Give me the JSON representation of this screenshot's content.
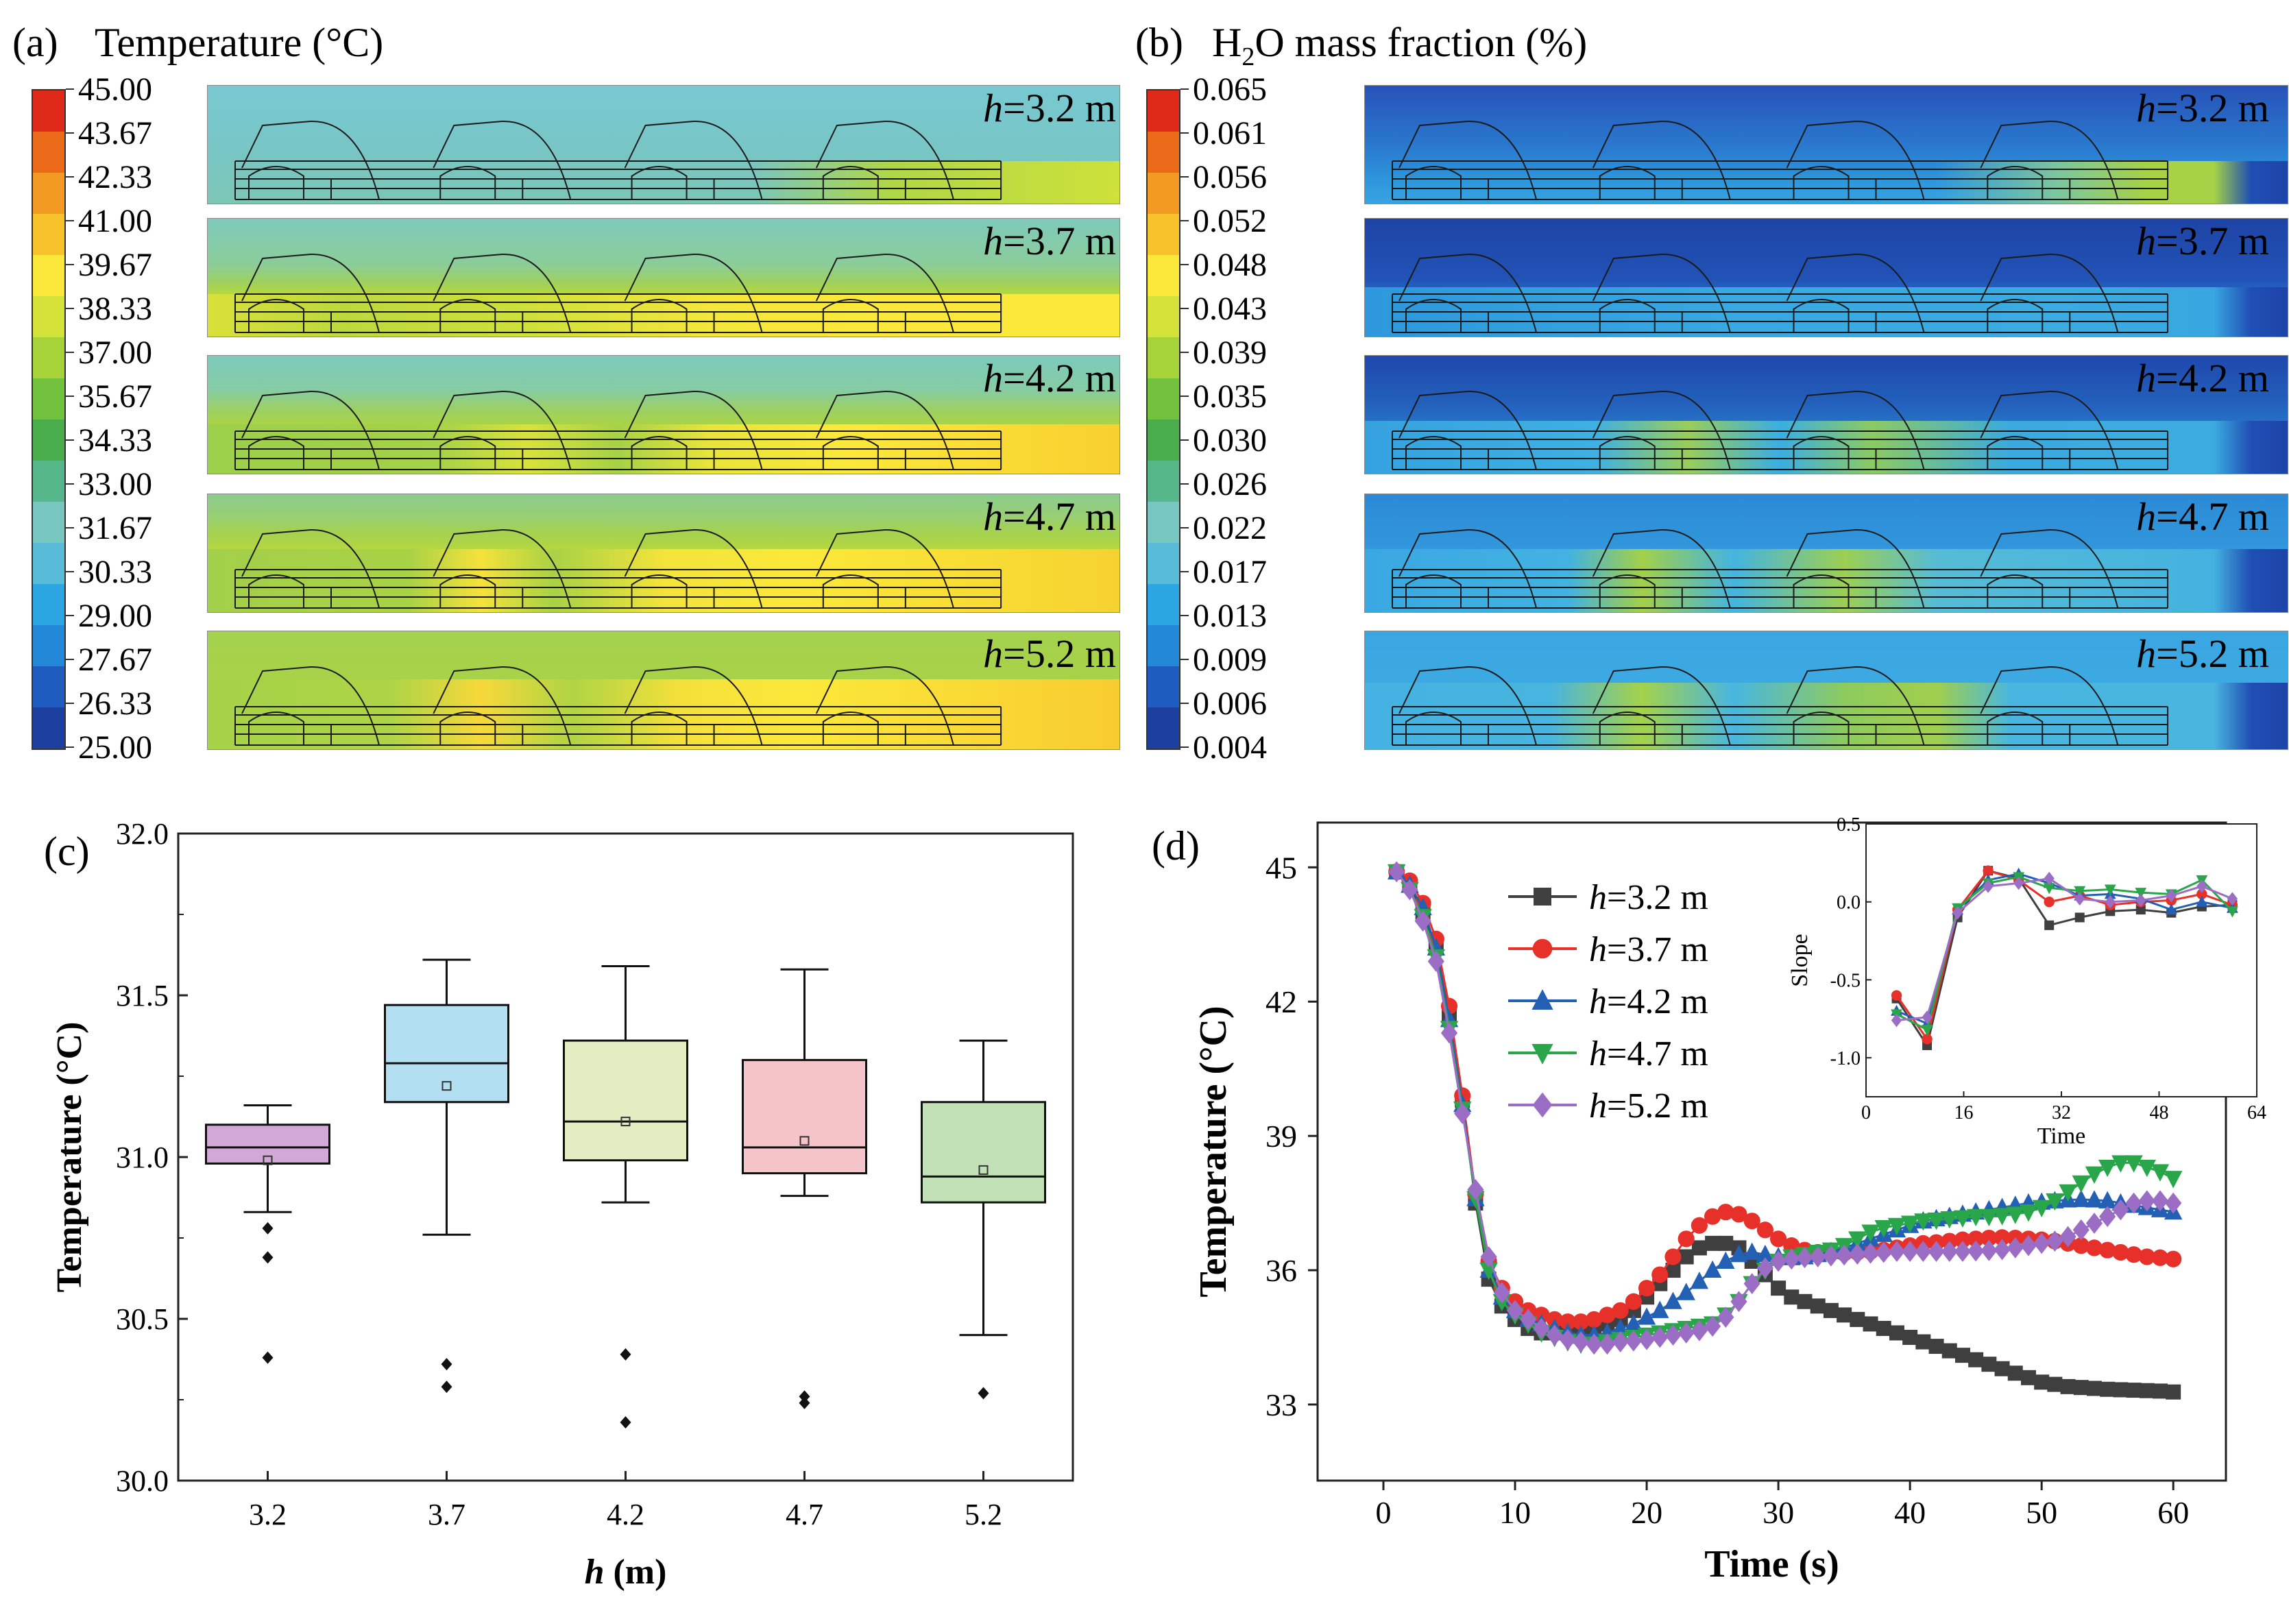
{
  "panel_a": {
    "label": "(a)",
    "title": "Temperature (°C)",
    "colorbar_ticks": [
      "45.00",
      "43.67",
      "42.33",
      "41.00",
      "39.67",
      "38.33",
      "37.00",
      "35.67",
      "34.33",
      "33.00",
      "31.67",
      "30.33",
      "29.00",
      "27.67",
      "26.33",
      "25.00"
    ],
    "h_prefix": "h",
    "h_labels": [
      "=3.2 m",
      "=3.7 m",
      "=4.2 m",
      "=4.7 m",
      "=5.2 m"
    ]
  },
  "panel_b": {
    "label": "(b)",
    "title_pre": "H",
    "title_sub": "2",
    "title_post": "O mass fraction (%)",
    "colorbar_ticks": [
      "0.065",
      "0.061",
      "0.056",
      "0.052",
      "0.048",
      "0.043",
      "0.039",
      "0.035",
      "0.030",
      "0.026",
      "0.022",
      "0.017",
      "0.013",
      "0.009",
      "0.006",
      "0.004"
    ],
    "h_prefix": "h",
    "h_labels": [
      "=3.2 m",
      "=3.7 m",
      "=4.2 m",
      "=4.7 m",
      "=5.2 m"
    ]
  },
  "colors": {
    "scale": [
      "#1d3fa0",
      "#1f5cc0",
      "#2388d8",
      "#2ba6e2",
      "#58bcd8",
      "#78c6c0",
      "#56b88a",
      "#48ad4a",
      "#72c23e",
      "#a6d23a",
      "#d5e23a",
      "#fbe83a",
      "#f8c22c",
      "#f29a22",
      "#ea6a1a",
      "#df2a1a"
    ],
    "h32": "#3f3f3f",
    "h37": "#e8302a",
    "h42": "#2360b4",
    "h47": "#2aa64a",
    "h52": "#9b6dc4"
  },
  "chart_data": [
    {
      "type": "box",
      "panel": "(c)",
      "xlabel_var": "h",
      "xlabel_unit": " (m)",
      "ylabel": "Temperature (°C)",
      "ylim": [
        30.0,
        32.0
      ],
      "yticks": [
        "30.0",
        "30.5",
        "31.0",
        "31.5",
        "32.0"
      ],
      "categories": [
        "3.2",
        "3.7",
        "4.2",
        "4.7",
        "5.2"
      ],
      "boxes": [
        {
          "q1": 30.98,
          "median": 31.03,
          "q3": 31.1,
          "mean": 30.99,
          "whisker_low": 30.83,
          "whisker_high": 31.16,
          "outliers": [
            30.78,
            30.69,
            30.38
          ],
          "fill": "#d2a9d6"
        },
        {
          "q1": 31.17,
          "median": 31.29,
          "q3": 31.47,
          "mean": 31.22,
          "whisker_low": 30.76,
          "whisker_high": 31.61,
          "outliers": [
            30.36,
            30.29
          ],
          "fill": "#b3dff3"
        },
        {
          "q1": 30.99,
          "median": 31.11,
          "q3": 31.36,
          "mean": 31.11,
          "whisker_low": 30.86,
          "whisker_high": 31.59,
          "outliers": [
            30.39,
            30.18
          ],
          "fill": "#e2edc2"
        },
        {
          "q1": 30.95,
          "median": 31.03,
          "q3": 31.3,
          "mean": 31.05,
          "whisker_low": 30.88,
          "whisker_high": 31.58,
          "outliers": [
            30.26,
            30.24
          ],
          "fill": "#f4c4c8"
        },
        {
          "q1": 30.86,
          "median": 30.94,
          "q3": 31.17,
          "mean": 30.96,
          "whisker_low": 30.45,
          "whisker_high": 31.36,
          "outliers": [
            30.27
          ],
          "fill": "#c2e1b7"
        }
      ]
    },
    {
      "type": "line",
      "panel": "(d)",
      "xlabel": "Time (s)",
      "ylabel": "Temperature (°C)",
      "xlim": [
        -5,
        64
      ],
      "ylim": [
        31.3,
        46.0
      ],
      "xticks": [
        "0",
        "10",
        "20",
        "30",
        "40",
        "50",
        "60"
      ],
      "yticks": [
        "33",
        "36",
        "39",
        "42",
        "45"
      ],
      "x": [
        1,
        2,
        3,
        4,
        5,
        6,
        7,
        8,
        9,
        10,
        11,
        12,
        13,
        14,
        15,
        16,
        17,
        18,
        19,
        20,
        21,
        22,
        23,
        24,
        25,
        26,
        27,
        28,
        29,
        30,
        31,
        32,
        33,
        34,
        35,
        36,
        37,
        38,
        39,
        40,
        41,
        42,
        43,
        44,
        45,
        46,
        47,
        48,
        49,
        50,
        51,
        52,
        53,
        54,
        55,
        56,
        57,
        58,
        59,
        60
      ],
      "series": [
        {
          "name": "=3.2 m",
          "marker": "square",
          "values": [
            44.9,
            44.6,
            44.0,
            43.2,
            41.7,
            39.8,
            37.5,
            35.8,
            35.2,
            34.9,
            34.7,
            34.6,
            34.6,
            34.6,
            34.6,
            34.7,
            34.8,
            34.9,
            35.1,
            35.4,
            35.7,
            36.0,
            36.3,
            36.5,
            36.6,
            36.6,
            36.5,
            36.2,
            35.9,
            35.6,
            35.4,
            35.3,
            35.2,
            35.1,
            35.0,
            34.9,
            34.8,
            34.7,
            34.6,
            34.5,
            34.4,
            34.3,
            34.2,
            34.1,
            34.0,
            33.9,
            33.8,
            33.7,
            33.6,
            33.5,
            33.45,
            33.4,
            33.38,
            33.36,
            33.34,
            33.33,
            33.32,
            33.31,
            33.3,
            33.28
          ]
        },
        {
          "name": "=3.7 m",
          "marker": "circle",
          "values": [
            44.9,
            44.7,
            44.2,
            43.4,
            41.9,
            39.9,
            37.7,
            36.2,
            35.6,
            35.3,
            35.1,
            35.0,
            34.9,
            34.85,
            34.85,
            34.9,
            35.0,
            35.1,
            35.3,
            35.6,
            35.9,
            36.3,
            36.7,
            37.0,
            37.2,
            37.3,
            37.25,
            37.1,
            36.9,
            36.7,
            36.55,
            36.45,
            36.4,
            36.38,
            36.38,
            36.4,
            36.42,
            36.45,
            36.5,
            36.55,
            36.6,
            36.62,
            36.65,
            36.68,
            36.7,
            36.72,
            36.73,
            36.72,
            36.7,
            36.68,
            36.65,
            36.6,
            36.55,
            36.5,
            36.45,
            36.4,
            36.35,
            36.3,
            36.28,
            36.25
          ]
        },
        {
          "name": "=4.2 m",
          "marker": "triangle-up",
          "values": [
            44.9,
            44.6,
            44.1,
            43.2,
            41.6,
            39.7,
            37.6,
            36.0,
            35.4,
            35.1,
            34.9,
            34.8,
            34.7,
            34.6,
            34.55,
            34.55,
            34.6,
            34.7,
            34.8,
            34.95,
            35.1,
            35.3,
            35.5,
            35.75,
            36.0,
            36.2,
            36.35,
            36.4,
            36.35,
            36.3,
            36.28,
            36.3,
            36.35,
            36.42,
            36.5,
            36.6,
            36.7,
            36.8,
            36.9,
            37.0,
            37.1,
            37.15,
            37.2,
            37.25,
            37.3,
            37.35,
            37.4,
            37.45,
            37.5,
            37.52,
            37.55,
            37.57,
            37.58,
            37.57,
            37.55,
            37.5,
            37.45,
            37.4,
            37.35,
            37.3
          ]
        },
        {
          "name": "=4.7 m",
          "marker": "triangle-down",
          "values": [
            44.9,
            44.5,
            43.9,
            43.0,
            41.4,
            39.6,
            37.6,
            36.0,
            35.3,
            35.0,
            34.8,
            34.6,
            34.5,
            34.4,
            34.35,
            34.35,
            34.4,
            34.45,
            34.5,
            34.55,
            34.6,
            34.65,
            34.7,
            34.75,
            34.8,
            35.0,
            35.3,
            35.7,
            36.0,
            36.2,
            36.3,
            36.35,
            36.4,
            36.45,
            36.55,
            36.7,
            36.85,
            36.95,
            37.0,
            37.05,
            37.1,
            37.12,
            37.15,
            37.17,
            37.2,
            37.2,
            37.22,
            37.25,
            37.3,
            37.4,
            37.55,
            37.75,
            37.95,
            38.15,
            38.3,
            38.4,
            38.4,
            38.3,
            38.2,
            38.05
          ]
        },
        {
          "name": "=5.2 m",
          "marker": "diamond",
          "values": [
            44.9,
            44.5,
            43.8,
            42.9,
            41.3,
            39.5,
            37.8,
            36.3,
            35.5,
            35.1,
            34.9,
            34.7,
            34.55,
            34.45,
            34.4,
            34.35,
            34.35,
            34.4,
            34.42,
            34.45,
            34.5,
            34.55,
            34.6,
            34.65,
            34.75,
            34.95,
            35.3,
            35.7,
            36.05,
            36.2,
            36.25,
            36.28,
            36.3,
            36.32,
            36.34,
            36.36,
            36.38,
            36.4,
            36.42,
            36.42,
            36.42,
            36.42,
            36.42,
            36.42,
            36.43,
            36.44,
            36.46,
            36.5,
            36.55,
            36.6,
            36.65,
            36.75,
            36.9,
            37.05,
            37.2,
            37.35,
            37.5,
            37.55,
            37.55,
            37.5
          ]
        }
      ],
      "inset": {
        "xlabel": "Time",
        "ylabel": "Slope",
        "xlim": [
          0,
          64
        ],
        "ylim": [
          -1.25,
          0.5
        ],
        "xticks": [
          "0",
          "16",
          "32",
          "48",
          "64"
        ],
        "yticks": [
          "-1.0",
          "-0.5",
          "0.0",
          "0.5"
        ],
        "x": [
          5,
          10,
          15,
          20,
          25,
          30,
          35,
          40,
          45,
          50,
          55,
          60
        ],
        "series": [
          {
            "name": "=3.2 m",
            "values": [
              -0.62,
              -0.92,
              -0.1,
              0.2,
              0.15,
              -0.15,
              -0.1,
              -0.06,
              -0.05,
              -0.07,
              -0.03,
              -0.02
            ]
          },
          {
            "name": "=3.7 m",
            "values": [
              -0.6,
              -0.88,
              -0.05,
              0.2,
              0.14,
              0.0,
              0.04,
              -0.02,
              0.0,
              0.01,
              0.05,
              -0.02
            ]
          },
          {
            "name": "=4.2 m",
            "values": [
              -0.7,
              -0.78,
              -0.05,
              0.14,
              0.18,
              0.12,
              0.04,
              0.05,
              0.02,
              -0.05,
              0.0,
              -0.04
            ]
          },
          {
            "name": "=4.7 m",
            "values": [
              -0.72,
              -0.82,
              -0.04,
              0.12,
              0.16,
              0.09,
              0.07,
              0.08,
              0.06,
              0.05,
              0.14,
              -0.06
            ]
          },
          {
            "name": "=5.2 m",
            "values": [
              -0.76,
              -0.74,
              -0.07,
              0.1,
              0.12,
              0.15,
              0.02,
              0.0,
              0.01,
              0.04,
              0.1,
              0.02
            ]
          }
        ]
      }
    }
  ]
}
